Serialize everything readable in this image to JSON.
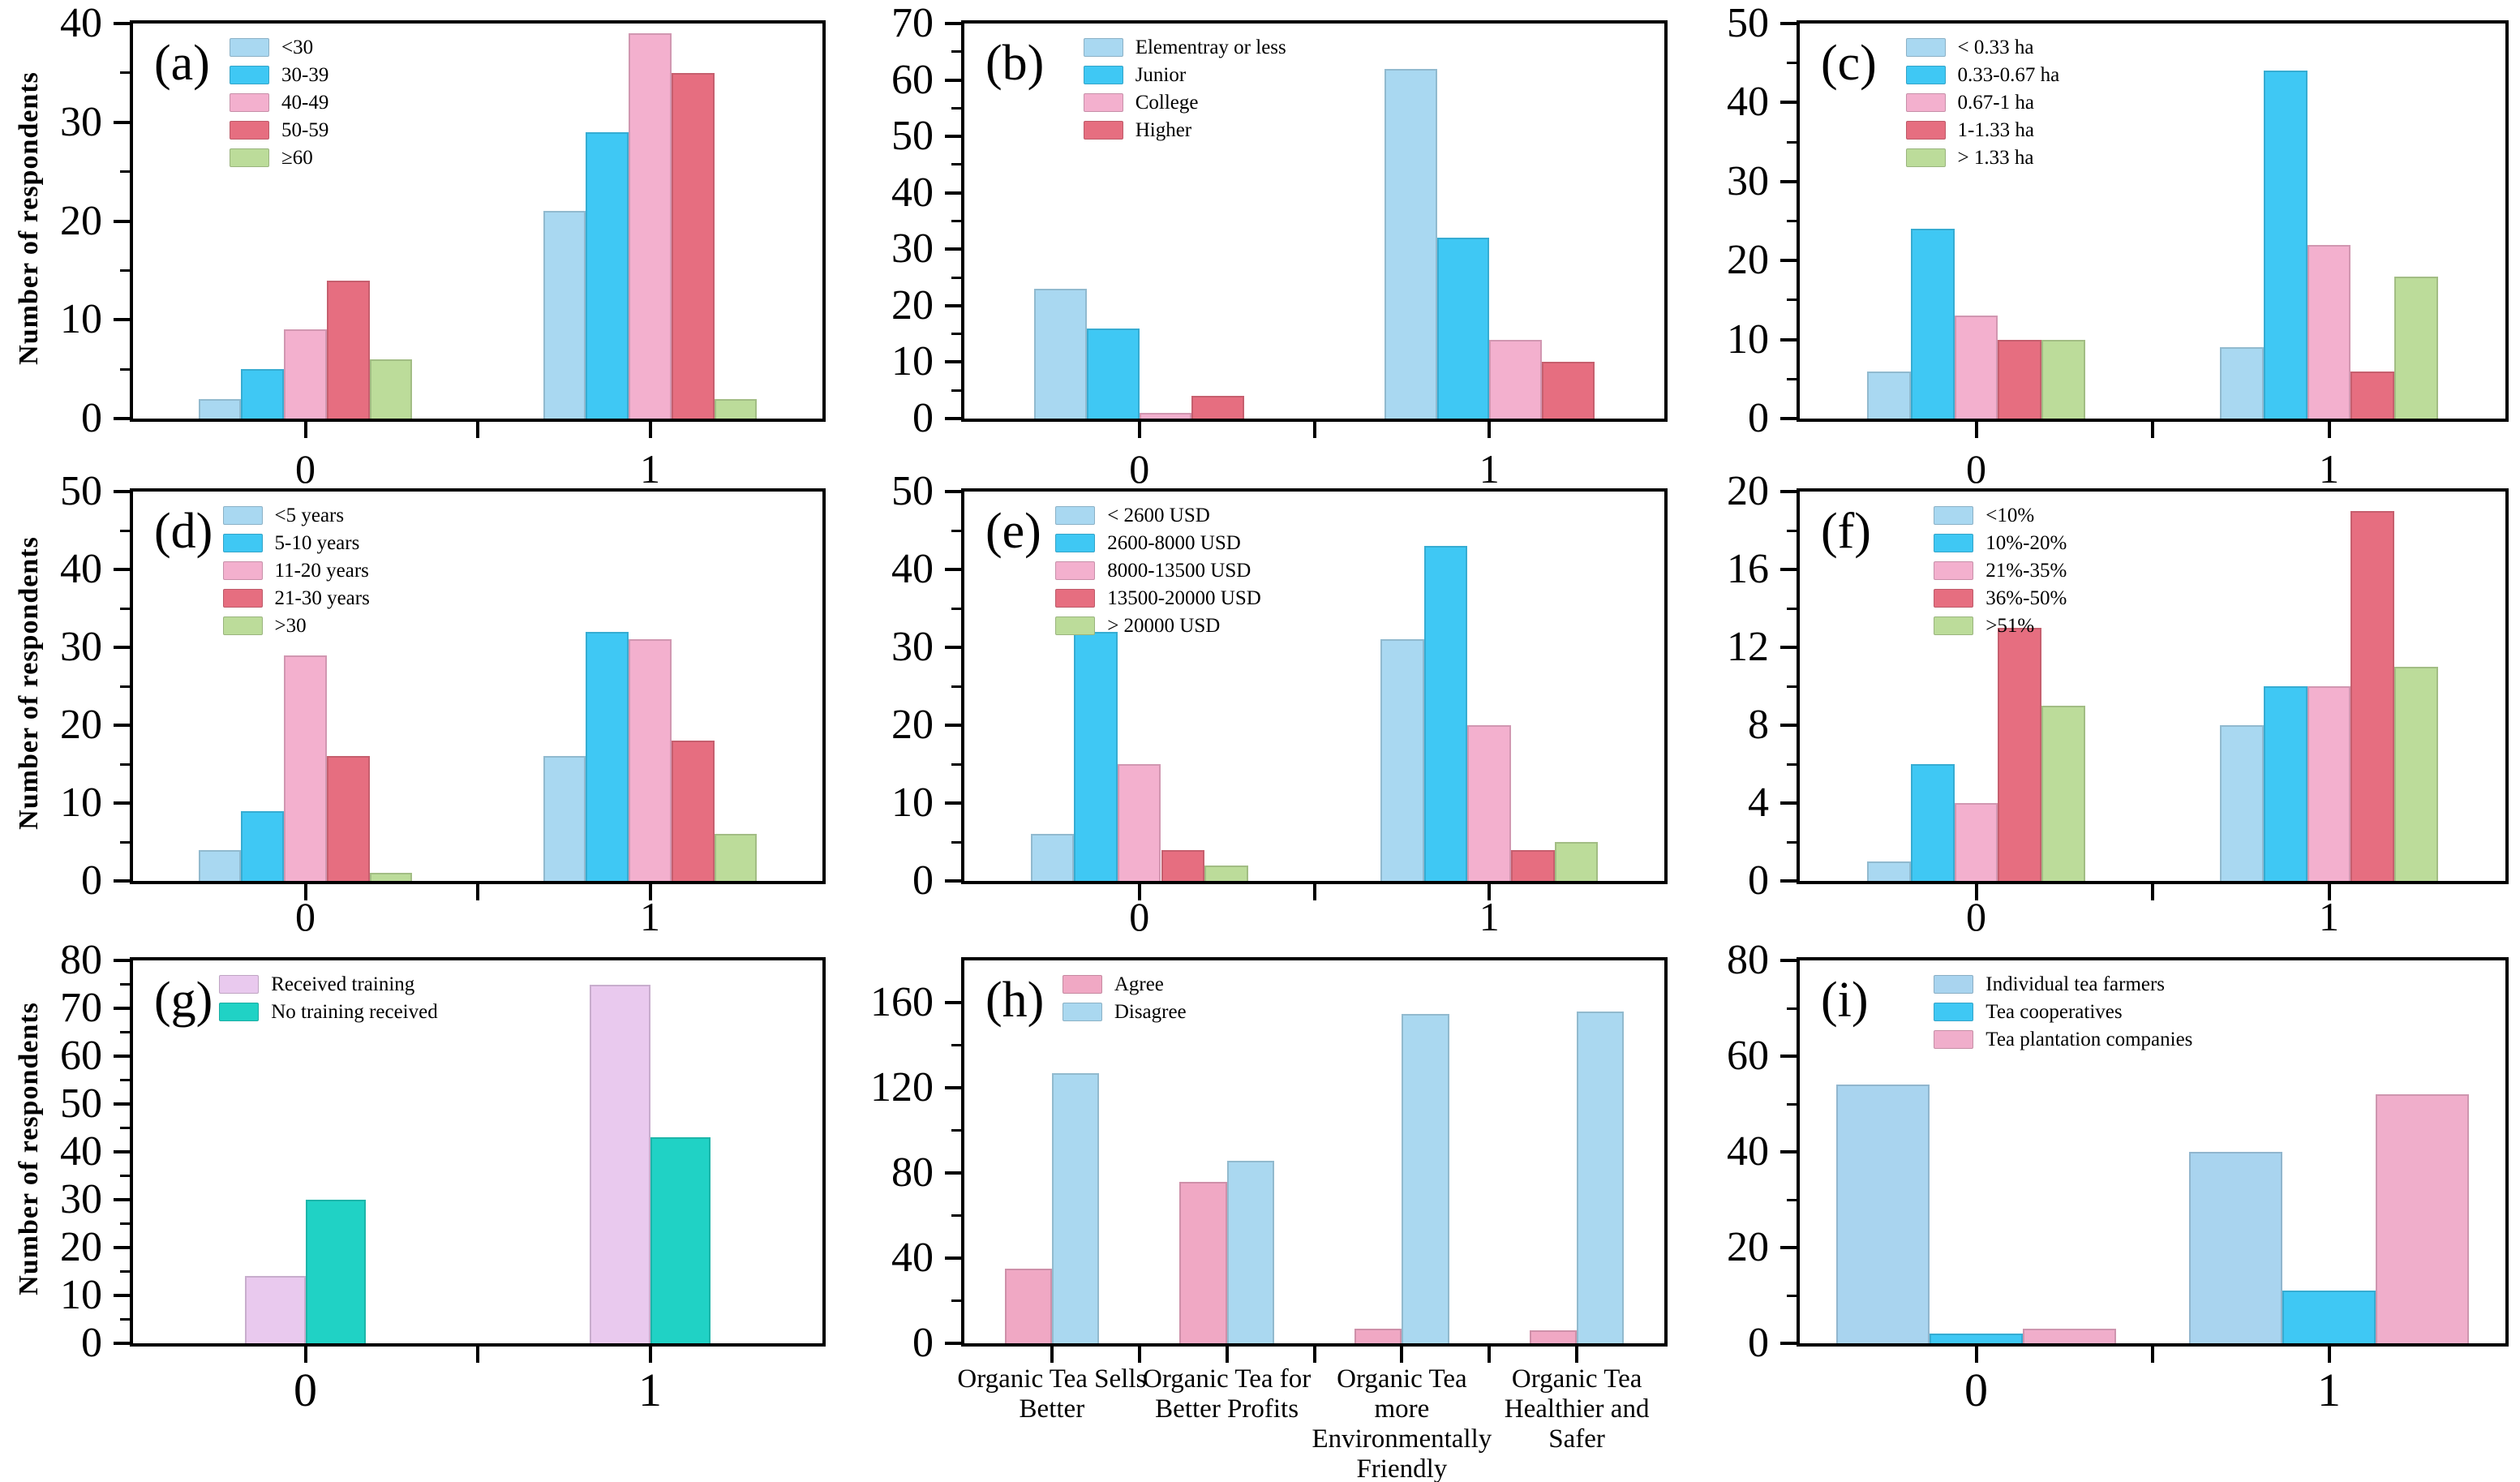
{
  "figure": {
    "y_axis_title": "Number of respondents"
  },
  "chart_data": [
    {
      "type": "bar",
      "label": "(a)",
      "ylabel": "Number of respondents",
      "ylim": [
        0,
        40
      ],
      "yticks": [
        0,
        10,
        20,
        30,
        40
      ],
      "yminor_step": 5,
      "grid": false,
      "legend_position": "top-left",
      "categories": [
        "0",
        "1"
      ],
      "series": [
        {
          "name": "<30",
          "color": "#a9d8f1",
          "values": [
            2,
            21
          ]
        },
        {
          "name": "30-39",
          "color": "#3fc8f4",
          "values": [
            5,
            29
          ]
        },
        {
          "name": "40-49",
          "color": "#f3b0ce",
          "values": [
            9,
            39
          ]
        },
        {
          "name": "50-59",
          "color": "#e66e80",
          "values": [
            14,
            35
          ]
        },
        {
          "name": "≥60",
          "color": "#bcdc9a",
          "values": [
            6,
            2
          ]
        }
      ]
    },
    {
      "type": "bar",
      "label": "(b)",
      "ylabel": "",
      "ylim": [
        0,
        70
      ],
      "yticks": [
        0,
        10,
        20,
        30,
        40,
        50,
        60,
        70
      ],
      "yminor_step": 5,
      "grid": false,
      "legend_position": "top-left",
      "categories": [
        "0",
        "1"
      ],
      "series": [
        {
          "name": "Elementray or less",
          "color": "#a9d8f1",
          "values": [
            23,
            62
          ]
        },
        {
          "name": "Junior",
          "color": "#3fc8f4",
          "values": [
            16,
            32
          ]
        },
        {
          "name": "College",
          "color": "#f3b0ce",
          "values": [
            1,
            14
          ]
        },
        {
          "name": "Higher",
          "color": "#e66e80",
          "values": [
            4,
            10
          ]
        }
      ]
    },
    {
      "type": "bar",
      "label": "(c)",
      "ylabel": "",
      "ylim": [
        0,
        50
      ],
      "yticks": [
        0,
        10,
        20,
        30,
        40,
        50
      ],
      "yminor_step": 5,
      "grid": false,
      "legend_position": "top-left",
      "categories": [
        "0",
        "1"
      ],
      "series": [
        {
          "name": "< 0.33 ha",
          "color": "#a9d8f1",
          "values": [
            6,
            9
          ]
        },
        {
          "name": "0.33-0.67 ha",
          "color": "#3fc8f4",
          "values": [
            24,
            44
          ]
        },
        {
          "name": "0.67-1 ha",
          "color": "#f3b0ce",
          "values": [
            13,
            22
          ]
        },
        {
          "name": "1-1.33 ha",
          "color": "#e66e80",
          "values": [
            10,
            6
          ]
        },
        {
          "name": "> 1.33 ha",
          "color": "#bcdc9a",
          "values": [
            10,
            18
          ]
        }
      ]
    },
    {
      "type": "bar",
      "label": "(d)",
      "ylabel": "Number of respondents",
      "ylim": [
        0,
        50
      ],
      "yticks": [
        0,
        10,
        20,
        30,
        40,
        50
      ],
      "yminor_step": 5,
      "grid": false,
      "legend_position": "top-left",
      "categories": [
        "0",
        "1"
      ],
      "series": [
        {
          "name": "<5 years",
          "color": "#a9d8f1",
          "values": [
            4,
            16
          ]
        },
        {
          "name": "5-10 years",
          "color": "#3fc8f4",
          "values": [
            9,
            32
          ]
        },
        {
          "name": "11-20 years",
          "color": "#f3b0ce",
          "values": [
            29,
            31
          ]
        },
        {
          "name": "21-30 years",
          "color": "#e66e80",
          "values": [
            16,
            18
          ]
        },
        {
          "name": ">30",
          "color": "#bcdc9a",
          "values": [
            1,
            6
          ]
        }
      ]
    },
    {
      "type": "bar",
      "label": "(e)",
      "ylabel": "",
      "ylim": [
        0,
        50
      ],
      "yticks": [
        0,
        10,
        20,
        30,
        40,
        50
      ],
      "yminor_step": 5,
      "grid": false,
      "legend_position": "top-left",
      "categories": [
        "0",
        "1"
      ],
      "series": [
        {
          "name": "< 2600 USD",
          "color": "#a9d8f1",
          "values": [
            6,
            31
          ]
        },
        {
          "name": "2600-8000 USD",
          "color": "#3fc8f4",
          "values": [
            32,
            43
          ]
        },
        {
          "name": "8000-13500 USD",
          "color": "#f3b0ce",
          "values": [
            15,
            20
          ]
        },
        {
          "name": "13500-20000 USD",
          "color": "#e66e80",
          "values": [
            4,
            4
          ]
        },
        {
          "name": "> 20000 USD",
          "color": "#bcdc9a",
          "values": [
            2,
            5
          ]
        }
      ]
    },
    {
      "type": "bar",
      "label": "(f)",
      "ylabel": "",
      "ylim": [
        0,
        20
      ],
      "yticks": [
        0,
        4,
        8,
        12,
        16,
        20
      ],
      "yminor_step": 2,
      "grid": false,
      "legend_position": "top-left",
      "categories": [
        "0",
        "1"
      ],
      "series": [
        {
          "name": "<10%",
          "color": "#a9d8f1",
          "values": [
            1,
            8
          ]
        },
        {
          "name": "10%-20%",
          "color": "#3fc8f4",
          "values": [
            6,
            10
          ]
        },
        {
          "name": "21%-35%",
          "color": "#f3b0ce",
          "values": [
            4,
            10
          ]
        },
        {
          "name": "36%-50%",
          "color": "#e66e80",
          "values": [
            13,
            19
          ]
        },
        {
          "name": ">51%",
          "color": "#bcdc9a",
          "values": [
            9,
            11
          ]
        }
      ]
    },
    {
      "type": "bar",
      "label": "(g)",
      "ylabel": "Number of respondents",
      "ylim": [
        0,
        80
      ],
      "yticks": [
        0,
        10,
        20,
        30,
        40,
        50,
        60,
        70,
        80
      ],
      "yminor_step": 5,
      "grid": false,
      "legend_position": "top-left",
      "categories": [
        "0",
        "1"
      ],
      "series": [
        {
          "name": "Received training",
          "color": "#e9c9ee",
          "values": [
            14,
            75
          ]
        },
        {
          "name": "No training received",
          "color": "#20d2c5",
          "values": [
            30,
            43
          ]
        }
      ]
    },
    {
      "type": "bar",
      "label": "(h)",
      "ylabel": "",
      "ylim": [
        0,
        180
      ],
      "yticks": [
        0,
        40,
        80,
        120,
        160
      ],
      "yminor_step": 20,
      "grid": false,
      "legend_position": "top-left",
      "categories": [
        "Organic Tea Sells\nBetter",
        "Organic Tea for\nBetter Profits",
        "Organic Tea\nmore\nEnvironmentally\nFriendly",
        "Organic Tea\nHealthier and\nSafer"
      ],
      "series": [
        {
          "name": "Agree",
          "color": "#f0a8c4",
          "values": [
            35,
            76,
            7,
            6
          ]
        },
        {
          "name": "Disagree",
          "color": "#aad8f0",
          "values": [
            127,
            86,
            155,
            156
          ]
        }
      ]
    },
    {
      "type": "bar",
      "label": "(i)",
      "ylabel": "",
      "ylim": [
        0,
        80
      ],
      "yticks": [
        0,
        20,
        40,
        60,
        80
      ],
      "yminor_step": 10,
      "grid": false,
      "legend_position": "top-left",
      "categories": [
        "0",
        "1"
      ],
      "series": [
        {
          "name": "Individual tea farmers",
          "color": "#a9d4ef",
          "values": [
            54,
            40
          ]
        },
        {
          "name": "Tea cooperatives",
          "color": "#3fc8f4",
          "values": [
            2,
            11
          ]
        },
        {
          "name": "Tea plantation companies",
          "color": "#f0aecb",
          "values": [
            3,
            52
          ]
        }
      ]
    }
  ]
}
